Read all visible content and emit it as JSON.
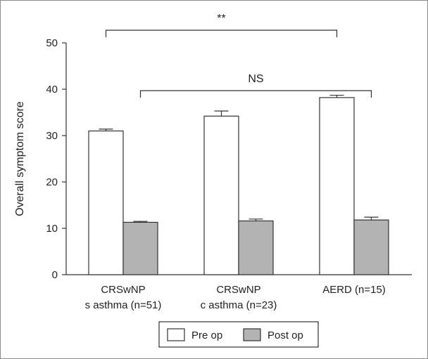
{
  "chart_data": {
    "type": "bar",
    "title": "",
    "xlabel": "",
    "ylabel": "Overall symptom score",
    "ylim": [
      0,
      50
    ],
    "yticks": [
      0,
      10,
      20,
      30,
      40,
      50
    ],
    "grid": false,
    "legend_position": "bottom",
    "categories": [
      [
        "CRSwNP",
        "s asthma (n=51)"
      ],
      [
        "CRSwNP",
        "c asthma (n=23)"
      ],
      [
        "AERD (n=15)"
      ]
    ],
    "series": [
      {
        "name": "Pre op",
        "color": "#ffffff",
        "values": [
          31.0,
          34.2,
          38.2
        ],
        "errors": [
          0.4,
          1.1,
          0.5
        ]
      },
      {
        "name": "Post op",
        "color": "#b3b3b3",
        "values": [
          11.3,
          11.6,
          11.8
        ],
        "errors": [
          0.2,
          0.4,
          0.6
        ]
      }
    ],
    "annotations": [
      {
        "label": "**",
        "from": {
          "category": 0,
          "series": 0
        },
        "to": {
          "category": 2,
          "series": 0
        },
        "y_level": 1
      },
      {
        "label": "NS",
        "from": {
          "category": 0,
          "series": 1
        },
        "to": {
          "category": 2,
          "series": 1
        },
        "y_level": 0
      }
    ]
  }
}
